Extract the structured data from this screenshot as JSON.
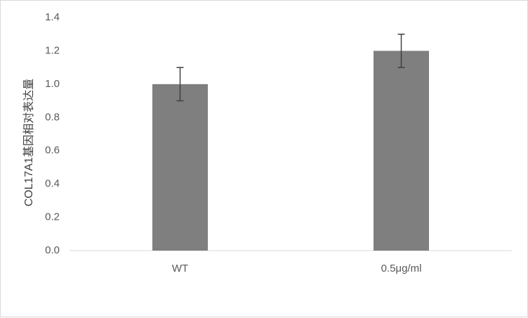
{
  "chart_data": {
    "type": "bar",
    "title": "",
    "xlabel": "",
    "ylabel": "COL17A1基因相对表达量",
    "categories": [
      "WT",
      "0.5μg/ml"
    ],
    "values": [
      1.0,
      1.2
    ],
    "error": [
      0.1,
      0.1
    ],
    "ylim": [
      0,
      1.4
    ],
    "yticks": [
      "0.0",
      "0.2",
      "0.4",
      "0.6",
      "0.8",
      "1.0",
      "1.2",
      "1.4"
    ],
    "grid": false,
    "legend": "none",
    "bar_color": "#7f7f7f",
    "error_color": "#404040",
    "axis_color": "#d9d9d9"
  }
}
